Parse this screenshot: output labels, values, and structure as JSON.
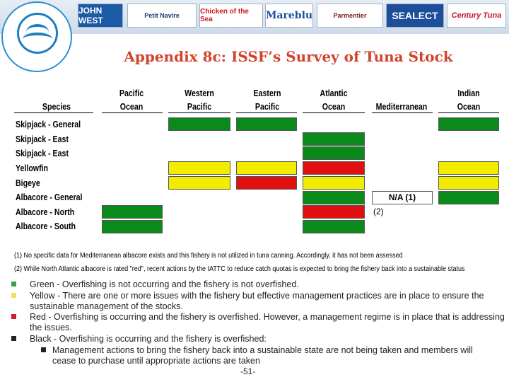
{
  "header": {
    "logo_text": "THAI UNION FROZEN PRODUCTS PCL",
    "brands": [
      "JOHN WEST",
      "Petit Navire",
      "Chicken of the Sea",
      "Mareblu",
      "Parmentier",
      "SEALECT",
      "Century Tuna"
    ]
  },
  "title": "Appendix 8c: ISSF’s Survey of Tuna Stock",
  "table": {
    "headers": {
      "species": "Species",
      "cols": [
        {
          "l1": "Pacific",
          "l2": "Ocean"
        },
        {
          "l1": "Western",
          "l2": "Pacific"
        },
        {
          "l1": "Eastern",
          "l2": "Pacific"
        },
        {
          "l1": "Atlantic",
          "l2": "Ocean"
        },
        {
          "l1": "",
          "l2": "Mediterranean"
        },
        {
          "l1": "Indian",
          "l2": "Ocean"
        }
      ]
    },
    "rows": [
      {
        "species": "Skipjack - General",
        "status": [
          "",
          "green",
          "green",
          "",
          "",
          "green"
        ]
      },
      {
        "species": "Skipjack - East",
        "status": [
          "",
          "",
          "",
          "green",
          "",
          ""
        ]
      },
      {
        "species": "Skipjack - East",
        "status": [
          "",
          "",
          "",
          "green",
          "",
          ""
        ]
      },
      {
        "species": "Yellowfin",
        "status": [
          "",
          "yellow",
          "yellow",
          "red",
          "",
          "yellow"
        ]
      },
      {
        "species": "Bigeye",
        "status": [
          "",
          "yellow",
          "red",
          "yellow",
          "",
          "yellow"
        ]
      },
      {
        "species": "Albacore - General",
        "status": [
          "",
          "",
          "",
          "green",
          "na",
          "green"
        ]
      },
      {
        "species": "Albacore - North",
        "status": [
          "green",
          "",
          "",
          "red",
          "",
          ""
        ]
      },
      {
        "species": "Albacore - South",
        "status": [
          "green",
          "",
          "",
          "green",
          "",
          ""
        ]
      }
    ],
    "na_label": "N/A (1)",
    "note2_label": "(2)"
  },
  "colors": {
    "green": "#0b8a1c",
    "yellow": "#f2ec00",
    "red": "#e01010",
    "black": "#222222"
  },
  "footnotes": [
    "(1) No specific data for Mediterranean albacore exists and this fishery is not utilized in tuna canning. Accordingly, it has not been assessed",
    "(2) While North Atlantic albacore is rated \"red\", recent actions by the IATTC to reduce catch quotas is expected to bring the fishery back into a sustainable status"
  ],
  "legend": [
    {
      "color": "green",
      "text": "Green - Overfishing is not occurring and the fishery is not overfished."
    },
    {
      "color": "yellow",
      "text": "Yellow - There are one or more issues with the fishery but effective management practices are in place to ensure the sustainable management of the stocks."
    },
    {
      "color": "red",
      "text": "Red - Overfishing is occurring and the fishery is overfished. However, a management regime is in place that is addressing the issues."
    },
    {
      "color": "black",
      "text": "Black - Overfishing is occurring and the fishery is overfished:"
    }
  ],
  "sub_bullet": "Management actions to bring the fishery back into a sustainable state are not being taken and members will cease to purchase until appropriate actions are taken",
  "page_number": "-51-"
}
